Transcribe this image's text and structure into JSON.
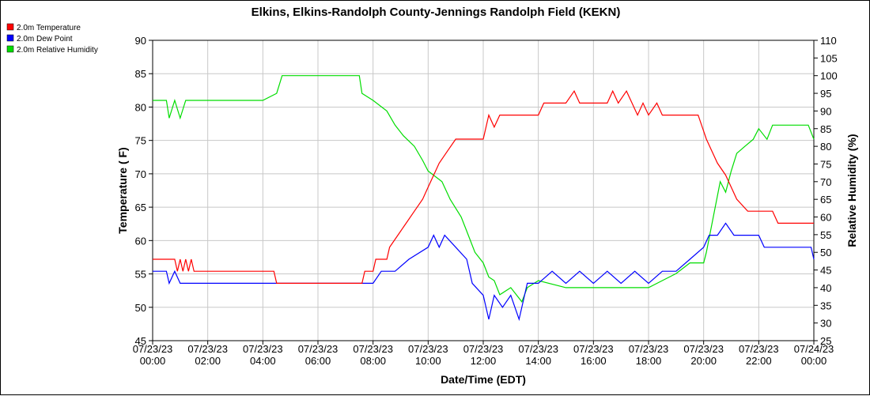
{
  "chart_data": {
    "type": "line",
    "title": "Elkins, Elkins-Randolph County-Jennings Randolph Field (KEKN)",
    "xlabel": "Date/Time (EDT)",
    "ylabel": "Temperature ( F)",
    "y2label": "Relative Humidity (%)",
    "xlim_hours": [
      0,
      24
    ],
    "ylim": [
      45,
      90
    ],
    "y2lim": [
      25,
      110
    ],
    "grid": true,
    "legend_position": "top-left",
    "x_ticks": [
      {
        "hour": 0,
        "date": "07/23/23",
        "time": "00:00"
      },
      {
        "hour": 2,
        "date": "07/23/23",
        "time": "02:00"
      },
      {
        "hour": 4,
        "date": "07/23/23",
        "time": "04:00"
      },
      {
        "hour": 6,
        "date": "07/23/23",
        "time": "06:00"
      },
      {
        "hour": 8,
        "date": "07/23/23",
        "time": "08:00"
      },
      {
        "hour": 10,
        "date": "07/23/23",
        "time": "10:00"
      },
      {
        "hour": 12,
        "date": "07/23/23",
        "time": "12:00"
      },
      {
        "hour": 14,
        "date": "07/23/23",
        "time": "14:00"
      },
      {
        "hour": 16,
        "date": "07/23/23",
        "time": "16:00"
      },
      {
        "hour": 18,
        "date": "07/23/23",
        "time": "18:00"
      },
      {
        "hour": 20,
        "date": "07/23/23",
        "time": "20:00"
      },
      {
        "hour": 22,
        "date": "07/23/23",
        "time": "22:00"
      },
      {
        "hour": 24,
        "date": "07/24/23",
        "time": "00:00"
      }
    ],
    "y_ticks": [
      45,
      50,
      55,
      60,
      65,
      70,
      75,
      80,
      85,
      90
    ],
    "y2_ticks": [
      25,
      30,
      35,
      40,
      45,
      50,
      55,
      60,
      65,
      70,
      75,
      80,
      85,
      90,
      95,
      100,
      105,
      110
    ],
    "series": [
      {
        "name": "2.0m Temperature",
        "axis": "left",
        "color": "#ff0000",
        "points": [
          [
            0,
            57.2
          ],
          [
            0.8,
            57.2
          ],
          [
            0.9,
            55.4
          ],
          [
            1.0,
            57.2
          ],
          [
            1.1,
            55.4
          ],
          [
            1.2,
            57.2
          ],
          [
            1.3,
            55.4
          ],
          [
            1.4,
            57.2
          ],
          [
            1.5,
            55.4
          ],
          [
            2,
            55.4
          ],
          [
            3,
            55.4
          ],
          [
            4,
            55.4
          ],
          [
            4.4,
            55.4
          ],
          [
            4.5,
            53.6
          ],
          [
            5,
            53.6
          ],
          [
            6,
            53.6
          ],
          [
            7,
            53.6
          ],
          [
            7.6,
            53.6
          ],
          [
            7.7,
            55.4
          ],
          [
            8,
            55.4
          ],
          [
            8.1,
            57.2
          ],
          [
            8.5,
            57.2
          ],
          [
            8.6,
            59
          ],
          [
            8.9,
            60.8
          ],
          [
            9.2,
            62.6
          ],
          [
            9.5,
            64.4
          ],
          [
            9.8,
            66.2
          ],
          [
            10,
            68
          ],
          [
            10.2,
            69.8
          ],
          [
            10.4,
            71.6
          ],
          [
            10.7,
            73.4
          ],
          [
            11,
            75.2
          ],
          [
            12,
            75.2
          ],
          [
            12.2,
            78.8
          ],
          [
            12.4,
            77
          ],
          [
            12.6,
            78.8
          ],
          [
            14,
            78.8
          ],
          [
            14.2,
            80.6
          ],
          [
            15,
            80.6
          ],
          [
            15.3,
            82.4
          ],
          [
            15.5,
            80.6
          ],
          [
            16.5,
            80.6
          ],
          [
            16.7,
            82.4
          ],
          [
            16.9,
            80.6
          ],
          [
            17.2,
            82.4
          ],
          [
            17.4,
            80.6
          ],
          [
            17.6,
            78.8
          ],
          [
            17.8,
            80.6
          ],
          [
            18,
            78.8
          ],
          [
            18.3,
            80.6
          ],
          [
            18.5,
            78.8
          ],
          [
            19,
            78.8
          ],
          [
            19.8,
            78.8
          ],
          [
            20.1,
            75.2
          ],
          [
            20.3,
            73.4
          ],
          [
            20.5,
            71.6
          ],
          [
            20.8,
            69.8
          ],
          [
            21,
            68
          ],
          [
            21.2,
            66.2
          ],
          [
            21.6,
            64.4
          ],
          [
            22.5,
            64.4
          ],
          [
            22.7,
            62.6
          ],
          [
            23.8,
            62.6
          ],
          [
            24,
            62.6
          ]
        ]
      },
      {
        "name": "2.0m Dew Point",
        "axis": "left",
        "color": "#0000ff",
        "points": [
          [
            0,
            55.4
          ],
          [
            0.5,
            55.4
          ],
          [
            0.6,
            53.6
          ],
          [
            0.8,
            55.4
          ],
          [
            1,
            53.6
          ],
          [
            2,
            53.6
          ],
          [
            3,
            53.6
          ],
          [
            4,
            53.6
          ],
          [
            5,
            53.6
          ],
          [
            6,
            53.6
          ],
          [
            7,
            53.6
          ],
          [
            8,
            53.6
          ],
          [
            8.3,
            55.4
          ],
          [
            8.8,
            55.4
          ],
          [
            9.3,
            57.2
          ],
          [
            10,
            59
          ],
          [
            10.2,
            60.8
          ],
          [
            10.4,
            59
          ],
          [
            10.6,
            60.8
          ],
          [
            11,
            59
          ],
          [
            11.4,
            57.2
          ],
          [
            11.6,
            53.6
          ],
          [
            12,
            51.8
          ],
          [
            12.2,
            48.2
          ],
          [
            12.4,
            51.8
          ],
          [
            12.7,
            50
          ],
          [
            13,
            51.8
          ],
          [
            13.3,
            48.2
          ],
          [
            13.6,
            53.6
          ],
          [
            14,
            53.6
          ],
          [
            14.5,
            55.4
          ],
          [
            15,
            53.6
          ],
          [
            15.5,
            55.4
          ],
          [
            16,
            53.6
          ],
          [
            16.5,
            55.4
          ],
          [
            17,
            53.6
          ],
          [
            17.5,
            55.4
          ],
          [
            18,
            53.6
          ],
          [
            18.5,
            55.4
          ],
          [
            19,
            55.4
          ],
          [
            19.5,
            57.2
          ],
          [
            20,
            59
          ],
          [
            20.2,
            60.8
          ],
          [
            20.5,
            60.8
          ],
          [
            20.8,
            62.6
          ],
          [
            21.1,
            60.8
          ],
          [
            22,
            60.8
          ],
          [
            22.2,
            59
          ],
          [
            23,
            59
          ],
          [
            23.9,
            59
          ],
          [
            24,
            57.2
          ]
        ]
      },
      {
        "name": "2.0m Relative Humidity",
        "axis": "right",
        "color": "#00dd00",
        "points": [
          [
            0,
            93
          ],
          [
            0.5,
            93
          ],
          [
            0.6,
            88
          ],
          [
            0.8,
            93
          ],
          [
            1,
            88
          ],
          [
            1.2,
            93
          ],
          [
            2,
            93
          ],
          [
            3,
            93
          ],
          [
            4,
            93
          ],
          [
            4.5,
            95
          ],
          [
            4.7,
            100
          ],
          [
            5,
            100
          ],
          [
            6,
            100
          ],
          [
            7,
            100
          ],
          [
            7.5,
            100
          ],
          [
            7.6,
            95
          ],
          [
            8,
            93
          ],
          [
            8.5,
            90
          ],
          [
            8.8,
            86
          ],
          [
            9.1,
            83
          ],
          [
            9.5,
            80
          ],
          [
            9.8,
            76
          ],
          [
            10,
            73
          ],
          [
            10.5,
            70
          ],
          [
            10.8,
            65
          ],
          [
            11.2,
            60
          ],
          [
            11.4,
            56
          ],
          [
            11.7,
            50
          ],
          [
            12,
            47
          ],
          [
            12.2,
            43
          ],
          [
            12.4,
            42
          ],
          [
            12.6,
            38
          ],
          [
            13,
            40
          ],
          [
            13.4,
            36
          ],
          [
            13.6,
            40
          ],
          [
            14,
            42
          ],
          [
            15,
            40
          ],
          [
            16,
            40
          ],
          [
            17,
            40
          ],
          [
            18,
            40
          ],
          [
            18.5,
            42
          ],
          [
            19,
            44
          ],
          [
            19.5,
            47
          ],
          [
            20,
            47
          ],
          [
            20.1,
            50
          ],
          [
            20.3,
            58
          ],
          [
            20.5,
            66
          ],
          [
            20.6,
            70
          ],
          [
            20.8,
            67
          ],
          [
            21,
            73
          ],
          [
            21.2,
            78
          ],
          [
            21.5,
            80
          ],
          [
            21.8,
            82
          ],
          [
            22,
            85
          ],
          [
            22.3,
            82
          ],
          [
            22.5,
            86
          ],
          [
            23,
            86
          ],
          [
            23.8,
            86
          ],
          [
            24,
            82
          ]
        ]
      }
    ]
  }
}
